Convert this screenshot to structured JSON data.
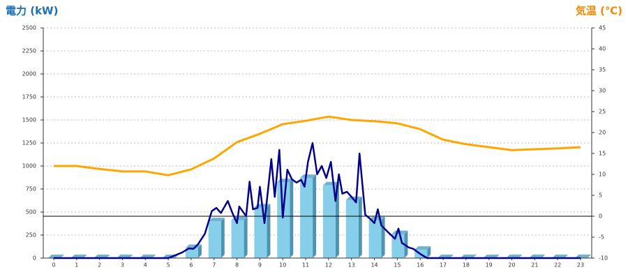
{
  "chart_data": {
    "type": "bar",
    "y_label": "電力 (kW)",
    "y2_label": "気温 (℃)",
    "categories": [
      "0",
      "1",
      "2",
      "3",
      "4",
      "5",
      "6",
      "7",
      "8",
      "9",
      "10",
      "11",
      "12",
      "13",
      "14",
      "15",
      "16",
      "17",
      "18",
      "19",
      "20",
      "21",
      "22",
      "23"
    ],
    "ylim": [
      0,
      2500
    ],
    "yticks": [
      0,
      250,
      500,
      750,
      1000,
      1250,
      1500,
      1750,
      2000,
      2250,
      2500
    ],
    "y2lim": [
      -10,
      45
    ],
    "y2ticks": [
      -10,
      -5,
      0,
      5,
      10,
      15,
      20,
      25,
      30,
      35,
      40,
      45
    ],
    "y2_reference_line": 0,
    "grid": true,
    "series": [
      {
        "type": "bar",
        "color": "#87ceeb",
        "values": [
          0,
          0,
          0,
          0,
          0,
          0,
          110,
          400,
          410,
          550,
          825,
          870,
          790,
          630,
          410,
          260,
          90,
          0,
          0,
          0,
          0,
          0,
          0,
          0
        ]
      },
      {
        "type": "line",
        "color": "#00008b",
        "x": [
          0,
          5,
          5.6,
          5.9,
          6.1,
          6.3,
          6.6,
          6.9,
          7.1,
          7.3,
          7.6,
          7.8,
          8.0,
          8.1,
          8.4,
          8.55,
          8.7,
          8.9,
          9.0,
          9.2,
          9.5,
          9.65,
          9.85,
          10.0,
          10.2,
          10.4,
          10.6,
          10.8,
          10.95,
          11.1,
          11.3,
          11.5,
          11.7,
          11.9,
          12.1,
          12.3,
          12.45,
          12.6,
          12.8,
          13.0,
          13.2,
          13.35,
          13.6,
          13.8,
          14.0,
          14.15,
          14.3,
          14.6,
          14.9,
          15.05,
          15.2,
          15.5,
          15.7,
          16.0,
          16.3,
          23
        ],
        "values": [
          0,
          0,
          60,
          105,
          100,
          150,
          265,
          510,
          545,
          490,
          620,
          490,
          380,
          560,
          455,
          830,
          530,
          545,
          775,
          380,
          1075,
          665,
          1175,
          440,
          960,
          855,
          820,
          850,
          775,
          1045,
          1250,
          910,
          1000,
          870,
          1045,
          620,
          910,
          700,
          720,
          665,
          605,
          1135,
          470,
          430,
          380,
          530,
          355,
          280,
          210,
          320,
          165,
          115,
          100,
          45,
          0,
          0
        ]
      },
      {
        "type": "line",
        "color": "#ffa500",
        "axis": "y2",
        "values": [
          12,
          12,
          11.3,
          10.7,
          10.7,
          9.8,
          11.2,
          13.8,
          17.7,
          19.7,
          22,
          22.8,
          23.8,
          23,
          22.7,
          22.2,
          20.8,
          18.3,
          17.2,
          16.5,
          15.8,
          16,
          16.2,
          16.5
        ]
      }
    ]
  }
}
